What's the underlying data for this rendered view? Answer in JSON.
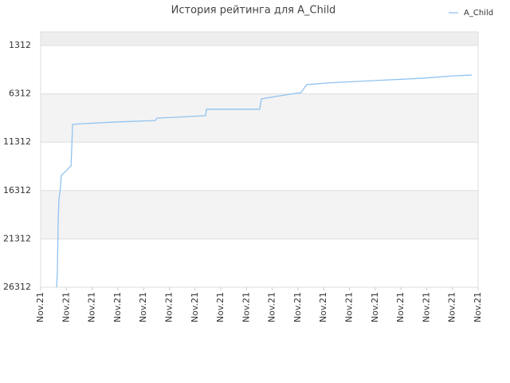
{
  "chart_data": {
    "type": "line",
    "title": "История рейтинга для A_Child",
    "x": [
      0.62,
      0.65,
      0.68,
      0.71,
      0.77,
      0.8,
      1.18,
      1.21,
      1.24,
      1.64,
      2.91,
      4.46,
      4.52,
      5.23,
      6.41,
      6.44,
      8.51,
      8.58,
      9.1,
      10.12,
      10.34,
      11.11,
      12.97,
      14.83,
      16.07,
      16.75
    ],
    "series": [
      {
        "name": "A_Child",
        "color": "#90c3f0",
        "values": [
          26312,
          24660,
          19710,
          17240,
          16000,
          14760,
          13770,
          11870,
          9480,
          9400,
          9230,
          9070,
          8820,
          8740,
          8570,
          7910,
          7910,
          6840,
          6590,
          6180,
          5360,
          5190,
          4940,
          4700,
          4450,
          4370
        ]
      }
    ],
    "xlim": [
      0,
      17
    ],
    "xticks": [
      {
        "value": 0,
        "label": "Nov.21"
      },
      {
        "value": 1,
        "label": "Nov.21"
      },
      {
        "value": 2,
        "label": "Nov.21"
      },
      {
        "value": 3,
        "label": "Nov.21"
      },
      {
        "value": 4,
        "label": "Nov.21"
      },
      {
        "value": 5,
        "label": "Nov.21"
      },
      {
        "value": 6,
        "label": "Nov.21"
      },
      {
        "value": 7,
        "label": "Nov.21"
      },
      {
        "value": 8,
        "label": "Nov.21"
      },
      {
        "value": 9,
        "label": "Nov.21"
      },
      {
        "value": 10,
        "label": "Nov.21"
      },
      {
        "value": 11,
        "label": "Nov.21"
      },
      {
        "value": 12,
        "label": "Nov.21"
      },
      {
        "value": 13,
        "label": "Nov.21"
      },
      {
        "value": 14,
        "label": "Nov.21"
      },
      {
        "value": 15,
        "label": "Nov.21"
      },
      {
        "value": 16,
        "label": "Nov.21"
      },
      {
        "value": 17,
        "label": "Nov.21"
      }
    ],
    "ylim": [
      26312,
      -90
    ],
    "yticks": [
      1312,
      6312,
      11312,
      16312,
      21312,
      26312
    ],
    "grid": true,
    "legend": "top-right"
  }
}
